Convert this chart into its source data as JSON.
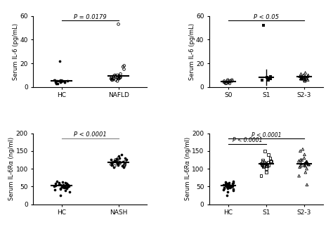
{
  "panel_A1": {
    "title": "P = 0.0179",
    "ylabel": "Serum IL-6 (pg/mL)",
    "xlabel_groups": [
      "HC",
      "NAFLD"
    ],
    "ylim": [
      0,
      60
    ],
    "yticks": [
      0,
      20,
      40,
      60
    ],
    "HC_dots": [
      5,
      4,
      6,
      5,
      3,
      4,
      5,
      22,
      4,
      5,
      6,
      4,
      3,
      5,
      6
    ],
    "NAFLD_dots": [
      8,
      7,
      9,
      8,
      10,
      6,
      7,
      8,
      9,
      10,
      11,
      7,
      6,
      8,
      9,
      17,
      18,
      53,
      15,
      6,
      7,
      8,
      5,
      6,
      7,
      8
    ],
    "HC_mean": 5.2,
    "NAFLD_mean": 9.5,
    "HC_sem": 1.4,
    "NAFLD_sem": 1.8
  },
  "panel_A2": {
    "title": "P < 0.05",
    "ylabel": "Serum IL-6 (pg/mL)",
    "xlabel_groups": [
      "S0",
      "S1",
      "S2-3"
    ],
    "ylim": [
      0,
      60
    ],
    "yticks": [
      0,
      20,
      40,
      60
    ],
    "S0_dots": [
      4,
      5,
      3,
      4,
      6,
      5,
      4,
      3,
      5,
      6,
      4,
      5,
      3
    ],
    "S1_dots": [
      7,
      8,
      9,
      6,
      7,
      52,
      8,
      6
    ],
    "S23_dots": [
      8,
      9,
      7,
      10,
      8,
      9,
      7,
      6,
      8,
      11,
      9,
      8,
      10,
      7,
      6,
      9,
      8,
      7,
      12,
      5,
      6,
      7
    ],
    "S0_mean": 4.5,
    "S1_mean": 8.0,
    "S23_mean": 8.5,
    "S0_sem": 0.7,
    "S1_sem": 6.5,
    "S23_sem": 0.9
  },
  "panel_B1": {
    "title": "P < 0.0001",
    "ylabel": "Serum IL-6Rα (ng/ml)",
    "xlabel_groups": [
      "HC",
      "NASH"
    ],
    "ylim": [
      0,
      200
    ],
    "yticks": [
      0,
      50,
      100,
      150,
      200
    ],
    "HC_dots": [
      55,
      60,
      58,
      50,
      52,
      55,
      48,
      45,
      57,
      50,
      55,
      60,
      48,
      52,
      46,
      35,
      55,
      42,
      49,
      56,
      40,
      38,
      44,
      53,
      47,
      62,
      58,
      50,
      25,
      65
    ],
    "NASH_dots": [
      110,
      120,
      115,
      108,
      125,
      130,
      118,
      112,
      122,
      135,
      140,
      105,
      128,
      115,
      122,
      118,
      105,
      110,
      130,
      125,
      120,
      108,
      115,
      112,
      120,
      118,
      110,
      125,
      130,
      115,
      122,
      108,
      118,
      125,
      112
    ],
    "HC_mean": 52,
    "NASH_mean": 118,
    "HC_sem": 3,
    "NASH_sem": 3
  },
  "panel_B2": {
    "title1": "P < 0.0001",
    "title2": "P < 0.0001",
    "ylabel": "Serum IL-6Rα (ng/ml)",
    "xlabel_groups": [
      "HC",
      "S1",
      "S2-3"
    ],
    "ylim": [
      0,
      200
    ],
    "yticks": [
      0,
      50,
      100,
      150,
      200
    ],
    "HC_dots": [
      55,
      60,
      58,
      50,
      52,
      55,
      48,
      45,
      57,
      50,
      55,
      60,
      48,
      52,
      46,
      35,
      55,
      42,
      49,
      56,
      40,
      38,
      44,
      53,
      47,
      62,
      58,
      50,
      25,
      65
    ],
    "S1_dots": [
      80,
      90,
      100,
      110,
      120,
      105,
      115,
      108,
      112,
      118,
      125,
      130,
      120,
      115,
      110,
      108,
      122,
      118,
      112,
      140,
      150
    ],
    "S23_dots": [
      55,
      80,
      90,
      100,
      110,
      115,
      108,
      120,
      125,
      105,
      118,
      112,
      122,
      130,
      115,
      108,
      118,
      125,
      112,
      120,
      140,
      150,
      155
    ],
    "HC_mean": 52,
    "S1_mean": 115,
    "S23_mean": 115,
    "HC_sem": 3,
    "S1_sem": 4,
    "S23_sem": 4
  }
}
